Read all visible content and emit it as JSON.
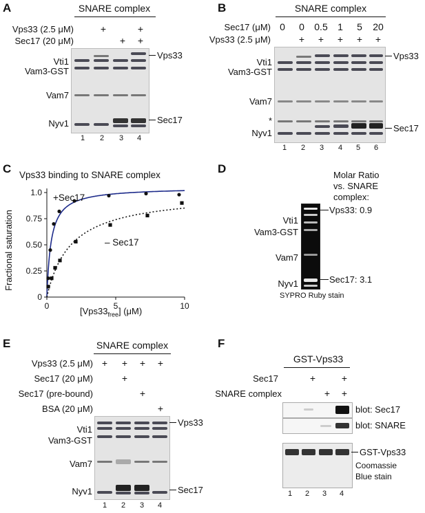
{
  "panelA": {
    "label": "A",
    "header": "SNARE complex",
    "rows": [
      {
        "label": "Vps33 (2.5 μM)",
        "marks": [
          "",
          "+",
          "",
          "+"
        ]
      },
      {
        "label": "Sec17 (20 μM)",
        "marks": [
          "",
          "",
          "+",
          "+"
        ]
      }
    ],
    "left_labels": [
      "Vti1",
      "Vam3-GST",
      "Vam7",
      "Nyv1"
    ],
    "right_labels": [
      "Vps33",
      "Sec17"
    ],
    "lanes": [
      "1",
      "2",
      "3",
      "4"
    ]
  },
  "panelB": {
    "label": "B",
    "header": "SNARE complex",
    "rows": [
      {
        "label": "Sec17 (μM)",
        "marks": [
          "0",
          "0",
          "0.5",
          "1",
          "5",
          "20"
        ]
      },
      {
        "label": "Vps33 (2.5 μM)",
        "marks": [
          "",
          "+",
          "+",
          "+",
          "+",
          "+"
        ]
      }
    ],
    "left_labels": [
      "Vti1",
      "Vam3-GST",
      "Vam7",
      "*",
      "Nyv1"
    ],
    "right_labels": [
      "Vps33",
      "Sec17"
    ],
    "lanes": [
      "1",
      "2",
      "3",
      "4",
      "5",
      "6"
    ]
  },
  "panelC": {
    "label": "C",
    "chart_data": {
      "type": "scatter",
      "title": "Vps33 binding to SNARE complex",
      "xlabel": "[Vps33free] (μM)",
      "ylabel": "Fractional saturation",
      "xlim": [
        0,
        10
      ],
      "ylim": [
        0,
        1.0
      ],
      "xticks": [
        "0",
        "5",
        "10"
      ],
      "yticks": [
        "0",
        "0.25",
        "0.50",
        "0.75",
        "1.0"
      ],
      "series": [
        {
          "name": "+Sec17",
          "marker": "circle",
          "color": "#1c2a8a",
          "x": [
            0.1,
            0.25,
            0.5,
            0.9,
            2.0,
            4.5,
            7.2,
            9.6
          ],
          "y": [
            0.18,
            0.45,
            0.7,
            0.82,
            0.92,
            0.97,
            0.99,
            0.98
          ]
        },
        {
          "name": "– Sec17",
          "marker": "square",
          "color": "#111111",
          "x": [
            0.1,
            0.35,
            0.6,
            0.95,
            2.1,
            4.6,
            7.3,
            9.8
          ],
          "y": [
            0.1,
            0.18,
            0.28,
            0.35,
            0.53,
            0.69,
            0.78,
            0.9
          ]
        }
      ]
    }
  },
  "panelD": {
    "label": "D",
    "title_lines": [
      "Molar Ratio",
      "vs. SNARE",
      "complex:"
    ],
    "left_labels": [
      "Vti1",
      "Vam3-GST",
      "Vam7",
      "Nyv1"
    ],
    "right_labels": [
      "Vps33: 0.9",
      "Sec17: 3.1"
    ],
    "caption": "SYPRO Ruby stain"
  },
  "panelE": {
    "label": "E",
    "header": "SNARE complex",
    "rows": [
      {
        "label": "Vps33 (2.5 μM)",
        "marks": [
          "+",
          "+",
          "+",
          "+"
        ]
      },
      {
        "label": "Sec17 (20 μM)",
        "marks": [
          "",
          "+",
          "",
          ""
        ]
      },
      {
        "label": "Sec17 (pre-bound)",
        "marks": [
          "",
          "",
          "+",
          ""
        ]
      },
      {
        "label": "BSA (20 μM)",
        "marks": [
          "",
          "",
          "",
          "+"
        ]
      }
    ],
    "left_labels": [
      "Vti1",
      "Vam3-GST",
      "Vam7",
      "Nyv1"
    ],
    "right_labels": [
      "Vps33",
      "Sec17"
    ],
    "lanes": [
      "1",
      "2",
      "3",
      "4"
    ]
  },
  "panelF": {
    "label": "F",
    "header": "GST-Vps33",
    "rows": [
      {
        "label": "Sec17",
        "marks": [
          "",
          "+",
          "",
          "+"
        ]
      },
      {
        "label": "SNARE complex",
        "marks": [
          "",
          "",
          "+",
          "+"
        ]
      }
    ],
    "blot_labels": [
      "blot: Sec17",
      "blot: SNARE"
    ],
    "right_label": "GST-Vps33",
    "caption_lines": [
      "Coomassie",
      "Blue stain"
    ],
    "lanes": [
      "1",
      "2",
      "3",
      "4"
    ]
  }
}
